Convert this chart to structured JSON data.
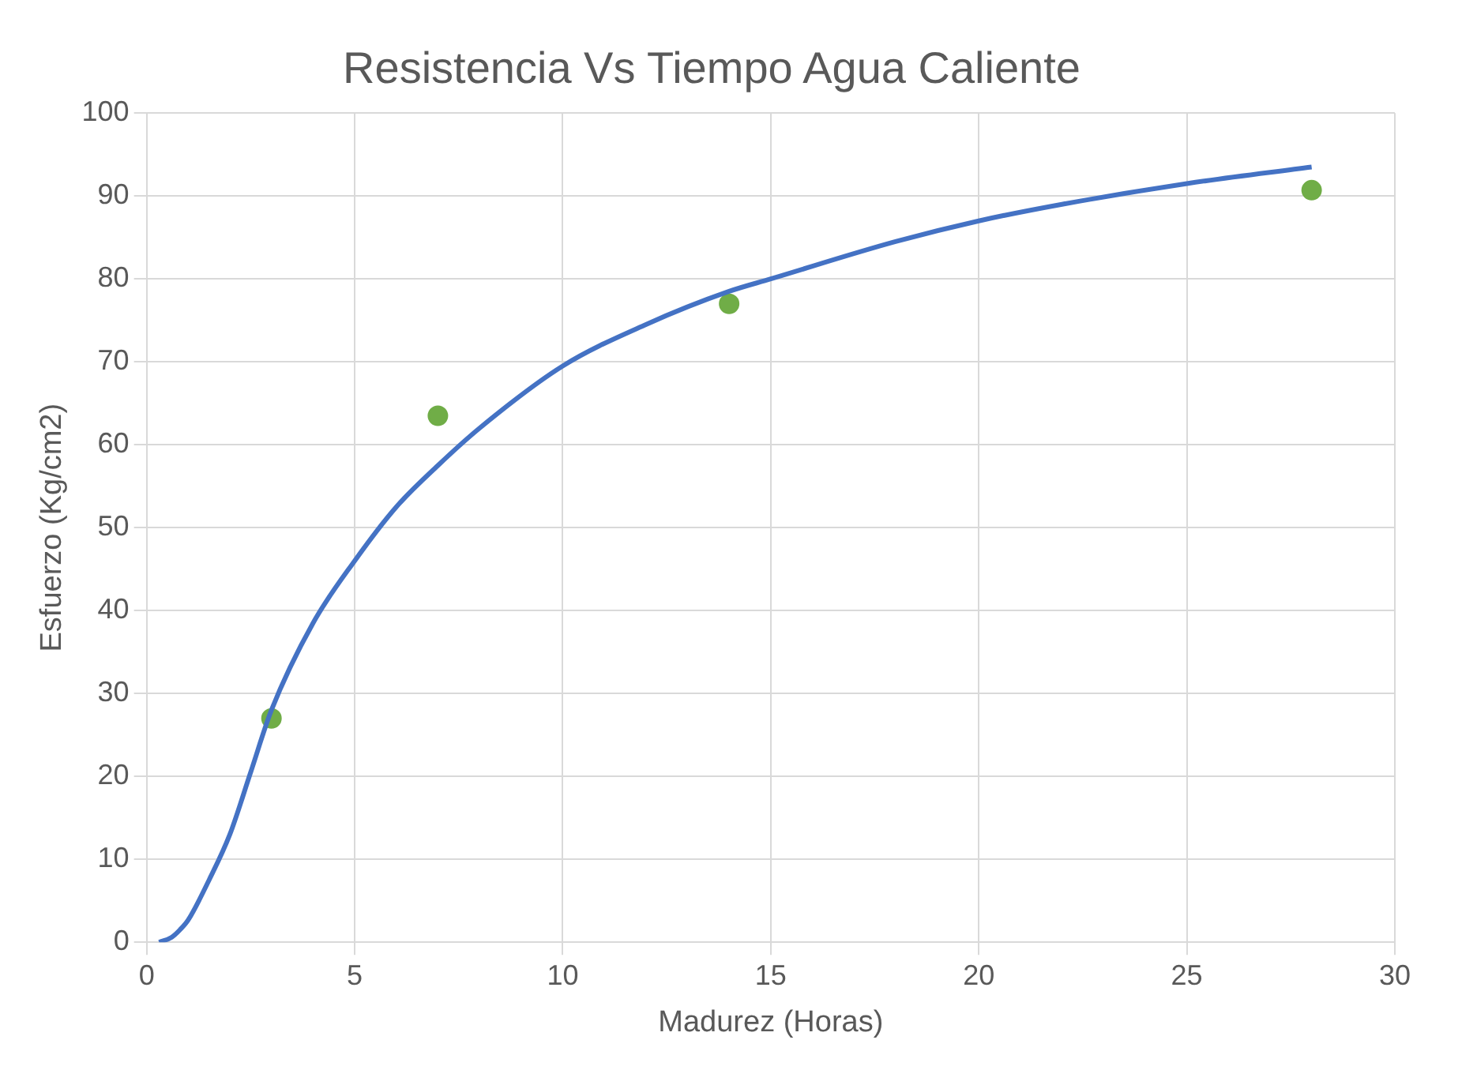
{
  "chart_data": {
    "type": "scatter",
    "title": "Resistencia Vs Tiempo Agua Caliente",
    "xlabel": "Madurez (Horas)",
    "ylabel": "Esfuerzo (Kg/cm2)",
    "xlim": [
      0,
      30
    ],
    "xticks": [
      0,
      5,
      10,
      15,
      20,
      25,
      30
    ],
    "ylim": [
      0,
      100
    ],
    "yticks": [
      0,
      10,
      20,
      30,
      40,
      50,
      60,
      70,
      80,
      90,
      100
    ],
    "grid": true,
    "series": [
      {
        "type": "line",
        "color": "#4472c4",
        "marker": "none",
        "x": [
          0.3,
          0.6,
          0.8,
          1,
          1.5,
          2,
          2.5,
          3,
          4,
          5,
          6,
          7,
          8,
          10,
          12,
          14,
          15,
          18,
          20,
          22,
          25,
          28
        ],
        "values": [
          0,
          0.6,
          1.5,
          2.7,
          7.5,
          13,
          20.5,
          28,
          38.5,
          46,
          52.5,
          57.5,
          62,
          69.5,
          74.5,
          78.5,
          80,
          84.5,
          87,
          89,
          91.5,
          93.5
        ]
      },
      {
        "color": "#70ad47",
        "marker": "circle",
        "x": [
          3,
          7,
          14,
          28
        ],
        "values": [
          27,
          63.5,
          77,
          90.7
        ]
      }
    ]
  }
}
